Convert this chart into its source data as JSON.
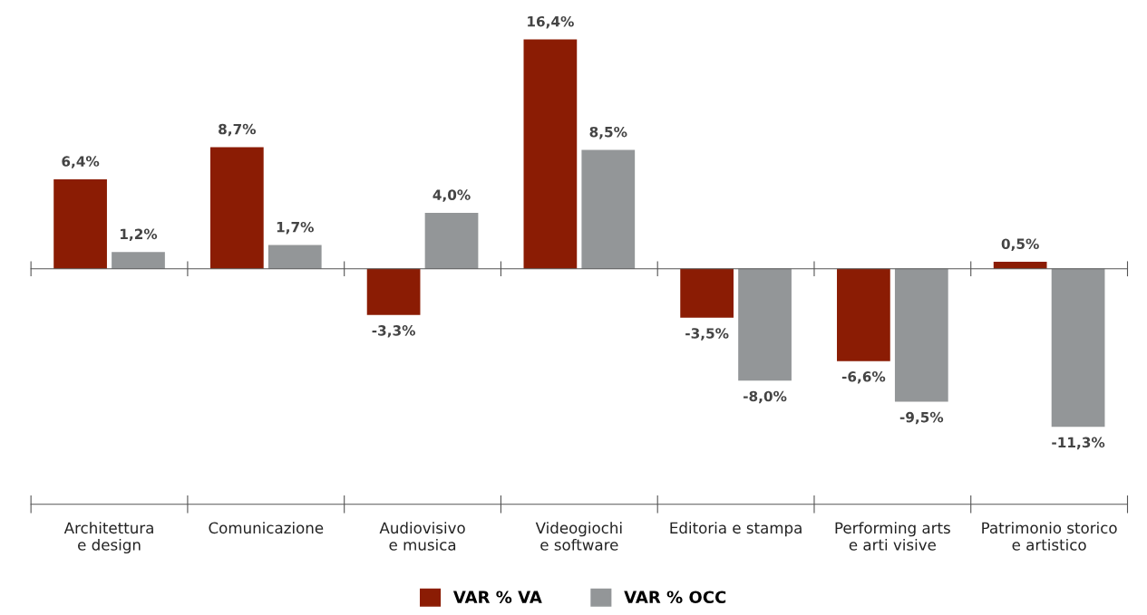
{
  "chart_data": {
    "type": "bar",
    "categories": [
      "Architettura\ne design",
      "Comunicazione",
      "Audiovisivo\ne musica",
      "Videogiochi\ne software",
      "Editoria e stampa",
      "Performing arts\ne arti visive",
      "Patrimonio storico\ne artistico"
    ],
    "series": [
      {
        "name": "VAR % VA",
        "color": "#8b1c04",
        "values": [
          6.4,
          8.7,
          -3.3,
          16.4,
          -3.5,
          -6.6,
          0.5
        ],
        "value_labels": [
          "6,4%",
          "8,7%",
          "-3,3%",
          "16,4%",
          "-3,5%",
          "-6,6%",
          "0,5%"
        ]
      },
      {
        "name": "VAR % OCC",
        "color": "#939698",
        "values": [
          1.2,
          1.7,
          4.0,
          8.5,
          -8.0,
          -9.5,
          -11.3
        ],
        "value_labels": [
          "1,2%",
          "1,7%",
          "4,0%",
          "8,5%",
          "-8,0%",
          "-9,5%",
          "-11,3%"
        ]
      }
    ],
    "legend": "bottom",
    "grid": false
  }
}
